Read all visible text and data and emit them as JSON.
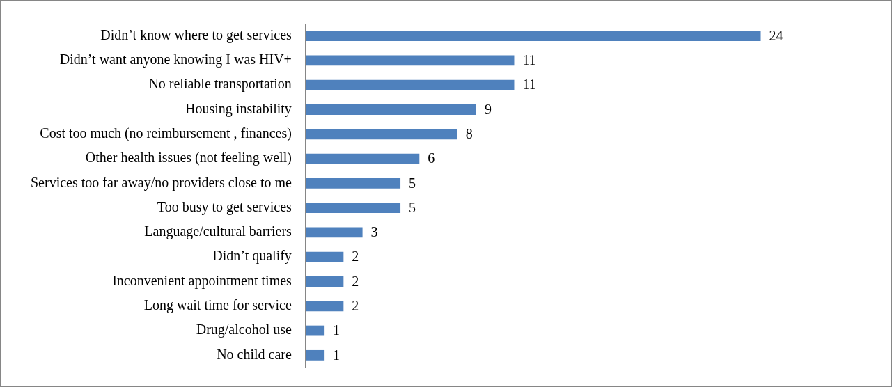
{
  "chart_data": {
    "type": "bar",
    "orientation": "horizontal",
    "categories": [
      "Didn’t know where to get services",
      "Didn’t want anyone knowing I was HIV+",
      "No reliable transportation",
      "Housing instability",
      "Cost too much (no reimbursement , finances)",
      "Other health issues (not feeling well)",
      "Services too far away/no providers close to me",
      "Too busy to get services",
      "Language/cultural barriers",
      "Didn’t qualify",
      "Inconvenient appointment times",
      "Long wait time for service",
      "Drug/alcohol use",
      "No child care"
    ],
    "values": [
      24,
      11,
      11,
      9,
      8,
      6,
      5,
      5,
      3,
      2,
      2,
      2,
      1,
      1
    ],
    "color": "#4f81bd",
    "data_labels": true
  }
}
